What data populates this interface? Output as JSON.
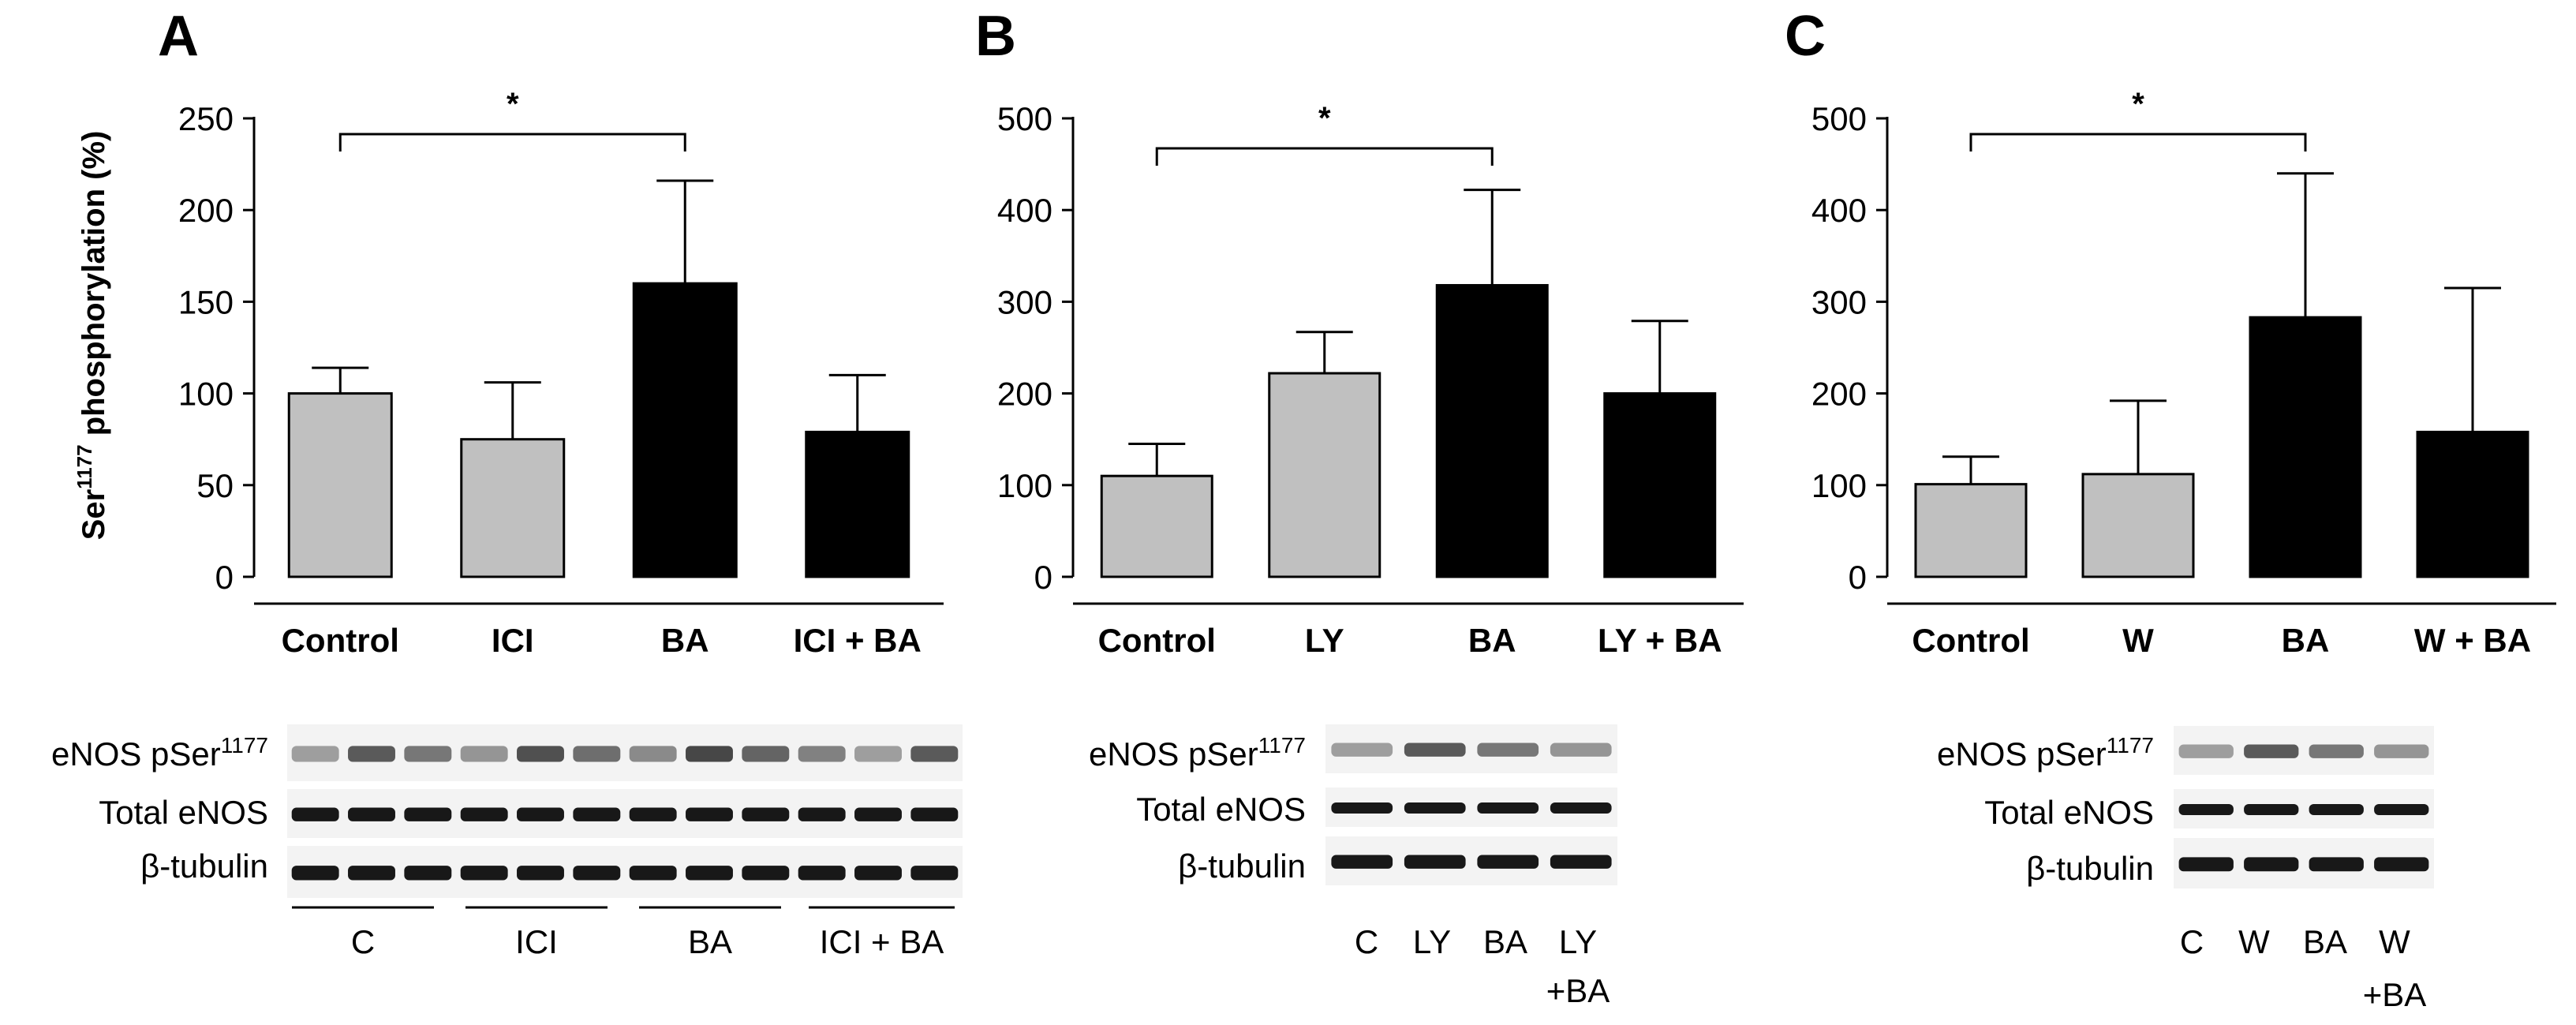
{
  "figure": {
    "ylabel_prefix": "Ser",
    "ylabel_sup": "1177",
    "ylabel_suffix": " phosphorylation (%)"
  },
  "colors": {
    "control_bar": "#c0c0c0",
    "treatment_bar": "#000000"
  },
  "chart_data": [
    {
      "panel": "A",
      "type": "bar",
      "categories": [
        "Control",
        "ICI",
        "BA",
        "ICI + BA"
      ],
      "values": [
        100,
        75,
        160,
        79
      ],
      "errors": [
        14,
        31,
        56,
        31
      ],
      "colors": [
        "#c0c0c0",
        "#c0c0c0",
        "#000000",
        "#000000"
      ],
      "ylim": [
        0,
        250
      ],
      "yticks": [
        0,
        50,
        100,
        150,
        200,
        250
      ],
      "significance": {
        "from": 0,
        "to": 2,
        "label": "*"
      },
      "blot": {
        "rows": [
          {
            "label": "eNOS pSer",
            "sup": "1177"
          },
          {
            "label": "Total eNOS",
            "sup": ""
          },
          {
            "label": "β-tubulin",
            "sup": ""
          }
        ],
        "lane_groups": [
          "C",
          "ICI",
          "BA",
          "ICI + BA"
        ]
      }
    },
    {
      "panel": "B",
      "type": "bar",
      "categories": [
        "Control",
        "LY",
        "BA",
        "LY + BA"
      ],
      "values": [
        110,
        222,
        318,
        200
      ],
      "errors": [
        35,
        45,
        104,
        79
      ],
      "colors": [
        "#c0c0c0",
        "#c0c0c0",
        "#000000",
        "#000000"
      ],
      "ylim": [
        0,
        500
      ],
      "yticks": [
        0,
        100,
        200,
        300,
        400,
        500
      ],
      "significance": {
        "from": 0,
        "to": 2,
        "label": "*"
      },
      "blot": {
        "rows": [
          {
            "label": "eNOS pSer",
            "sup": "1177"
          },
          {
            "label": "Total eNOS",
            "sup": ""
          },
          {
            "label": "β-tubulin",
            "sup": ""
          }
        ],
        "lanes": [
          "C",
          "LY",
          "BA",
          "LY",
          "+BA"
        ]
      }
    },
    {
      "panel": "C",
      "type": "bar",
      "categories": [
        "Control",
        "W",
        "BA",
        "W + BA"
      ],
      "values": [
        101,
        112,
        283,
        158
      ],
      "errors": [
        30,
        80,
        157,
        157
      ],
      "colors": [
        "#c0c0c0",
        "#c0c0c0",
        "#000000",
        "#000000"
      ],
      "ylim": [
        0,
        500
      ],
      "yticks": [
        0,
        100,
        200,
        300,
        400,
        500
      ],
      "significance": {
        "from": 0,
        "to": 2,
        "label": "*"
      },
      "blot": {
        "rows": [
          {
            "label": "eNOS pSer",
            "sup": "1177"
          },
          {
            "label": "Total eNOS",
            "sup": ""
          },
          {
            "label": "β-tubulin",
            "sup": ""
          }
        ],
        "lanes": [
          "C",
          "W",
          "BA",
          "W",
          "+BA"
        ]
      }
    }
  ]
}
